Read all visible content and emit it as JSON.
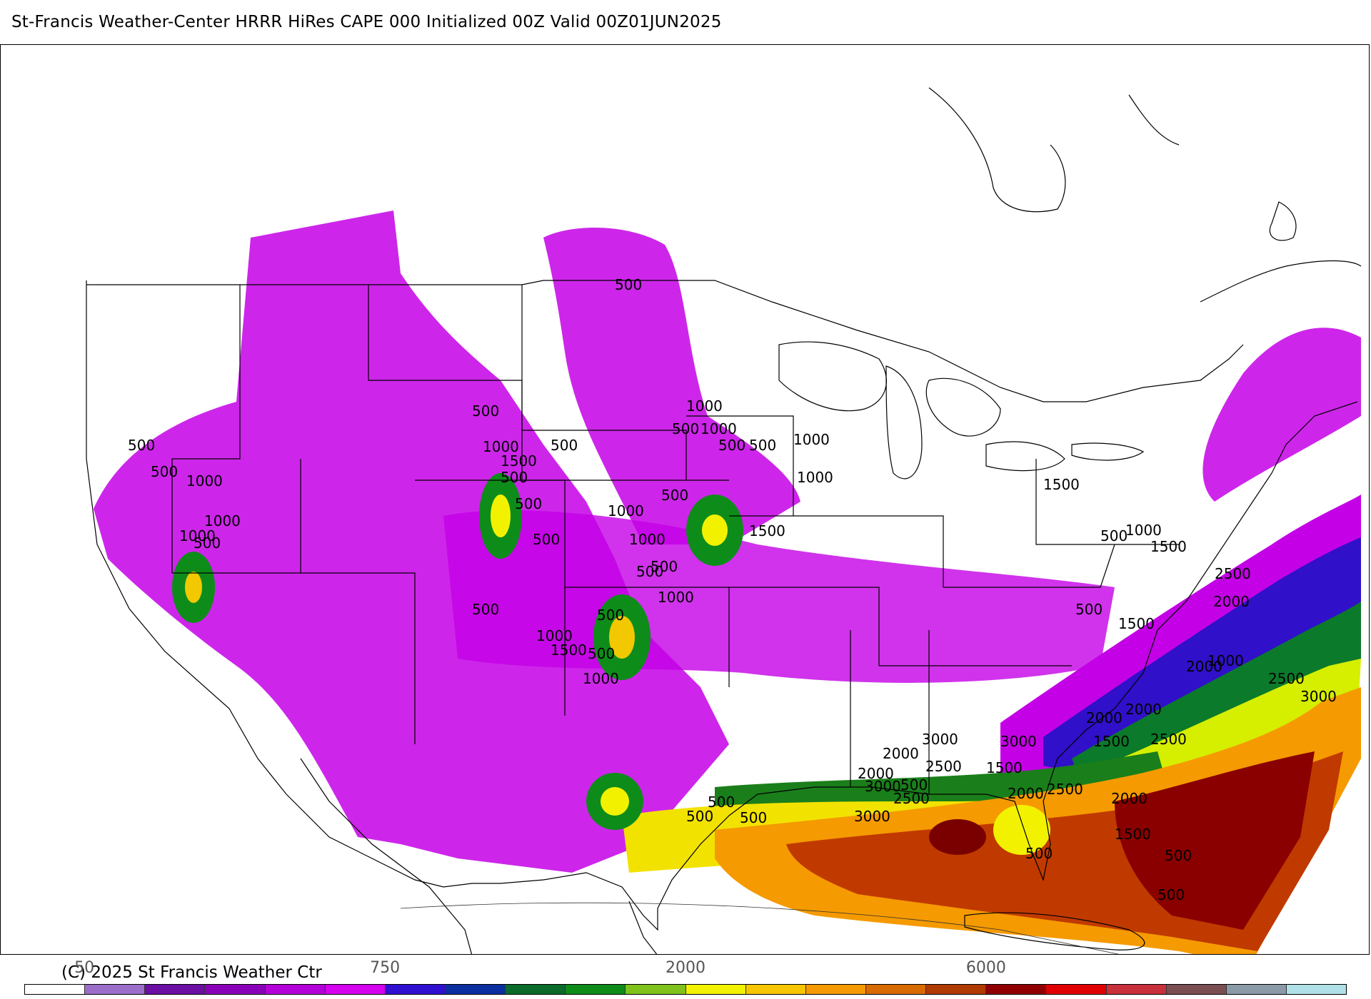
{
  "title": "St-Francis Weather-Center HRRR HiRes CAPE  000 Initialized  00Z Valid 00Z01JUN2025",
  "copyright": "(C) 2025 St Francis Weather Ctr",
  "colorbar": {
    "colors": [
      "#ffffff",
      "#9b6fc9",
      "#6a0ea4",
      "#8a00b8",
      "#b400d8",
      "#d400ee",
      "#2f0fd0",
      "#0a2f9e",
      "#0b6b2a",
      "#0e8c1a",
      "#7fc21c",
      "#f2f200",
      "#f7c600",
      "#f59a00",
      "#d86a00",
      "#b03a00",
      "#900000",
      "#e00000",
      "#c8303c",
      "#7b4e52",
      "#8a9aa6",
      "#b0e0e8"
    ],
    "tick_labels": [
      {
        "text": "50",
        "index": 1
      },
      {
        "text": "750",
        "index": 6
      },
      {
        "text": "2000",
        "index": 11
      },
      {
        "text": "6000",
        "index": 16
      }
    ]
  },
  "contour_labels": [
    "500",
    "500",
    "500",
    "500",
    "1000",
    "1000",
    "1000",
    "500",
    "1000",
    "1500",
    "500",
    "500",
    "1000",
    "500",
    "1000",
    "500",
    "500",
    "1000",
    "1000",
    "1500",
    "500",
    "1000",
    "500",
    "500",
    "1000",
    "500",
    "500",
    "1000",
    "500",
    "500",
    "1000",
    "1500",
    "500",
    "1000",
    "1500",
    "500",
    "1000",
    "1500",
    "2500",
    "2000",
    "500",
    "1500",
    "2000",
    "1000",
    "2000",
    "2500",
    "3000",
    "2500",
    "2000",
    "1500",
    "3000",
    "3000",
    "2000",
    "2500",
    "2000",
    "1500",
    "3000",
    "2500",
    "3000",
    "2000",
    "2500",
    "2000",
    "1500",
    "500",
    "500",
    "500",
    "500",
    "500",
    "500",
    "500"
  ]
}
